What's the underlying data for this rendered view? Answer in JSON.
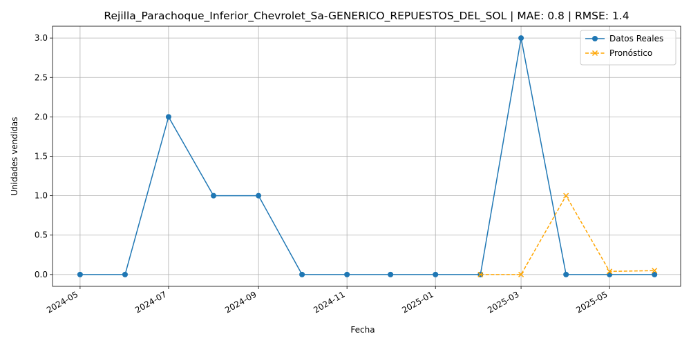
{
  "chart_data": {
    "type": "line",
    "title": "Rejilla_Parachoque_Inferior_Chevrolet_Sa-GENERICO_REPUESTOS_DEL_SOL | MAE: 0.8 | RMSE: 1.4",
    "xlabel": "Fecha",
    "ylabel": "Unidades vendidas",
    "xlim": [
      "2024-04-12",
      "2025-06-19"
    ],
    "ylim": [
      -0.15,
      3.15
    ],
    "x_ticks": [
      "2024-05-01",
      "2024-07-01",
      "2024-09-01",
      "2024-11-01",
      "2025-01-01",
      "2025-03-01",
      "2025-05-01"
    ],
    "x_tick_labels": [
      "2024-05",
      "2024-07",
      "2024-09",
      "2024-11",
      "2025-01",
      "2025-03",
      "2025-05"
    ],
    "y_ticks": [
      0.0,
      0.5,
      1.0,
      1.5,
      2.0,
      2.5,
      3.0
    ],
    "y_tick_labels": [
      "0.0",
      "0.5",
      "1.0",
      "1.5",
      "2.0",
      "2.5",
      "3.0"
    ],
    "grid": true,
    "legend_position": "top-right",
    "series": [
      {
        "name": "Datos Reales",
        "color": "#1f77b4",
        "marker": "circle",
        "line_style": "solid",
        "x": [
          "2024-05-01",
          "2024-06-01",
          "2024-07-01",
          "2024-08-01",
          "2024-09-01",
          "2024-10-01",
          "2024-11-01",
          "2024-12-01",
          "2025-01-01",
          "2025-02-01",
          "2025-03-01",
          "2025-04-01",
          "2025-05-01",
          "2025-06-01"
        ],
        "values": [
          0,
          0,
          2,
          1,
          1,
          0,
          0,
          0,
          0,
          0,
          3,
          0,
          0,
          0
        ]
      },
      {
        "name": "Pronóstico",
        "color": "#ffa500",
        "marker": "x",
        "line_style": "dashed",
        "x": [
          "2025-02-01",
          "2025-03-01",
          "2025-04-01",
          "2025-05-01",
          "2025-06-01"
        ],
        "values": [
          0.0,
          0.0,
          1.0,
          0.04,
          0.05
        ]
      }
    ]
  }
}
